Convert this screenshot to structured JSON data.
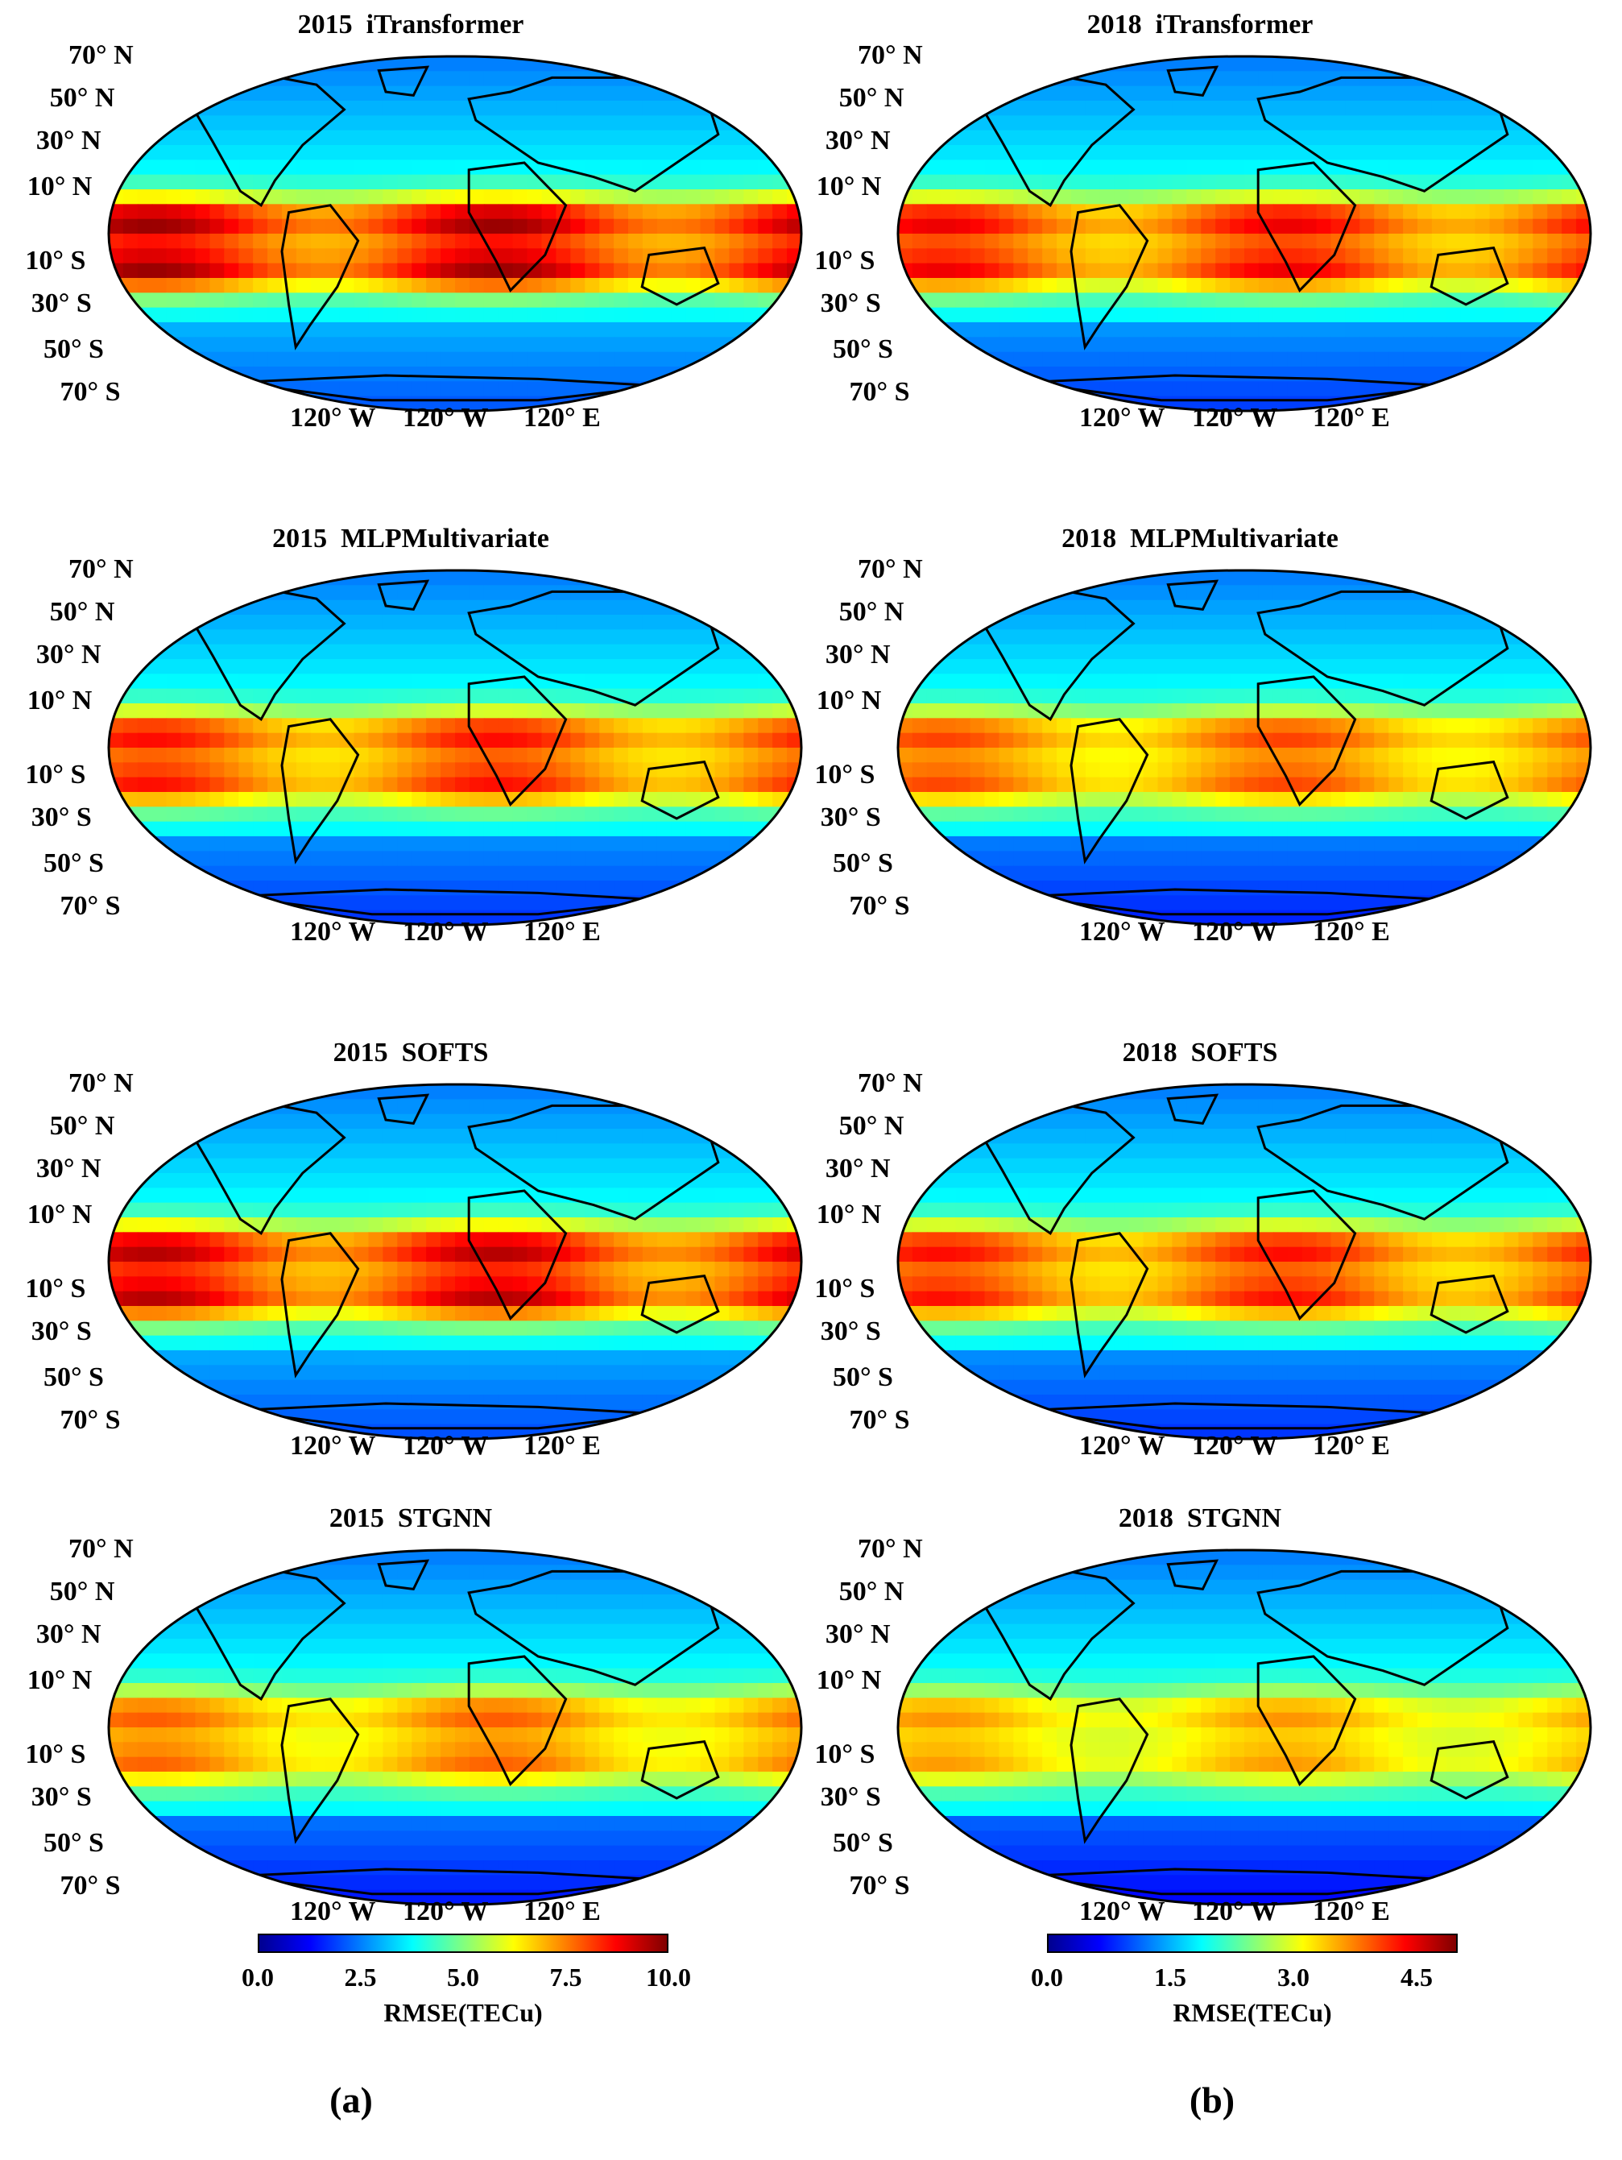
{
  "lat_labels": [
    "70° N",
    "50° N",
    "30° N",
    "10° N",
    "10° S",
    "30° S",
    "50° S",
    "70° S"
  ],
  "lon_labels": [
    "120° W",
    "120° W",
    "120° E"
  ],
  "panels": [
    {
      "title": "2015  iTransformer",
      "column": "a",
      "row": 0,
      "intensity": 1.0
    },
    {
      "title": "2018  iTransformer",
      "column": "b",
      "row": 0,
      "intensity": 0.85
    },
    {
      "title": "2015  MLPMultivariate",
      "column": "a",
      "row": 1,
      "intensity": 0.8
    },
    {
      "title": "2018  MLPMultivariate",
      "column": "b",
      "row": 1,
      "intensity": 0.7
    },
    {
      "title": "2015  SOFTS",
      "column": "a",
      "row": 2,
      "intensity": 0.95
    },
    {
      "title": "2018  SOFTS",
      "column": "b",
      "row": 2,
      "intensity": 0.8
    },
    {
      "title": "2015  STGNN",
      "column": "a",
      "row": 3,
      "intensity": 0.65
    },
    {
      "title": "2018  STGNN",
      "column": "b",
      "row": 3,
      "intensity": 0.55
    }
  ],
  "colorbars": [
    {
      "column": "a",
      "ticks": [
        "0.0",
        "2.5",
        "5.0",
        "7.5",
        "10.0"
      ],
      "min": 0,
      "max": 10,
      "label": "RMSE(TECu)"
    },
    {
      "column": "b",
      "ticks": [
        "0.0",
        "1.5",
        "3.0",
        "4.5"
      ],
      "min": 0,
      "max": 5,
      "label": "RMSE(TECu)"
    }
  ],
  "subfigure_labels": [
    "(a)",
    "(b)"
  ],
  "colormap": [
    "#00008f",
    "#0000ff",
    "#0080ff",
    "#00ffff",
    "#80ff80",
    "#ffff00",
    "#ff8000",
    "#ff0000",
    "#800000"
  ],
  "chart_data": [
    {
      "type": "heatmap",
      "title": "2015  iTransformer",
      "colorbar_range": [
        0,
        10
      ],
      "colorbar_label": "RMSE(TECu)",
      "description_values": {
        "equatorial_peak": 9.5,
        "mid_latitude": 4.0,
        "high_latitude": 3.0
      }
    },
    {
      "type": "heatmap",
      "title": "2018  iTransformer",
      "colorbar_range": [
        0,
        5
      ],
      "colorbar_label": "RMSE(TECu)",
      "description_values": {
        "equatorial_peak": 4.6,
        "mid_latitude": 1.5,
        "high_latitude": 0.8
      }
    },
    {
      "type": "heatmap",
      "title": "2015  MLPMultivariate",
      "colorbar_range": [
        0,
        10
      ],
      "colorbar_label": "RMSE(TECu)",
      "description_values": {
        "equatorial_peak": 8.5,
        "mid_latitude": 4.0,
        "high_latitude": 3.0
      }
    },
    {
      "type": "heatmap",
      "title": "2018  MLPMultivariate",
      "colorbar_range": [
        0,
        5
      ],
      "colorbar_label": "RMSE(TECu)",
      "description_values": {
        "equatorial_peak": 4.0,
        "mid_latitude": 1.5,
        "high_latitude": 0.8
      }
    },
    {
      "type": "heatmap",
      "title": "2015  SOFTS",
      "colorbar_range": [
        0,
        10
      ],
      "colorbar_label": "RMSE(TECu)",
      "description_values": {
        "equatorial_peak": 9.5,
        "mid_latitude": 4.0,
        "high_latitude": 3.0
      }
    },
    {
      "type": "heatmap",
      "title": "2018  SOFTS",
      "colorbar_range": [
        0,
        5
      ],
      "colorbar_label": "RMSE(TECu)",
      "description_values": {
        "equatorial_peak": 4.6,
        "mid_latitude": 1.4,
        "high_latitude": 0.7
      }
    },
    {
      "type": "heatmap",
      "title": "2015  STGNN",
      "colorbar_range": [
        0,
        10
      ],
      "colorbar_label": "RMSE(TECu)",
      "description_values": {
        "equatorial_peak": 8.5,
        "mid_latitude": 3.8,
        "high_latitude": 3.0
      }
    },
    {
      "type": "heatmap",
      "title": "2018  STGNN",
      "colorbar_range": [
        0,
        5
      ],
      "colorbar_label": "RMSE(TECu)",
      "description_values": {
        "equatorial_peak": 3.8,
        "mid_latitude": 1.4,
        "high_latitude": 0.8
      }
    }
  ]
}
